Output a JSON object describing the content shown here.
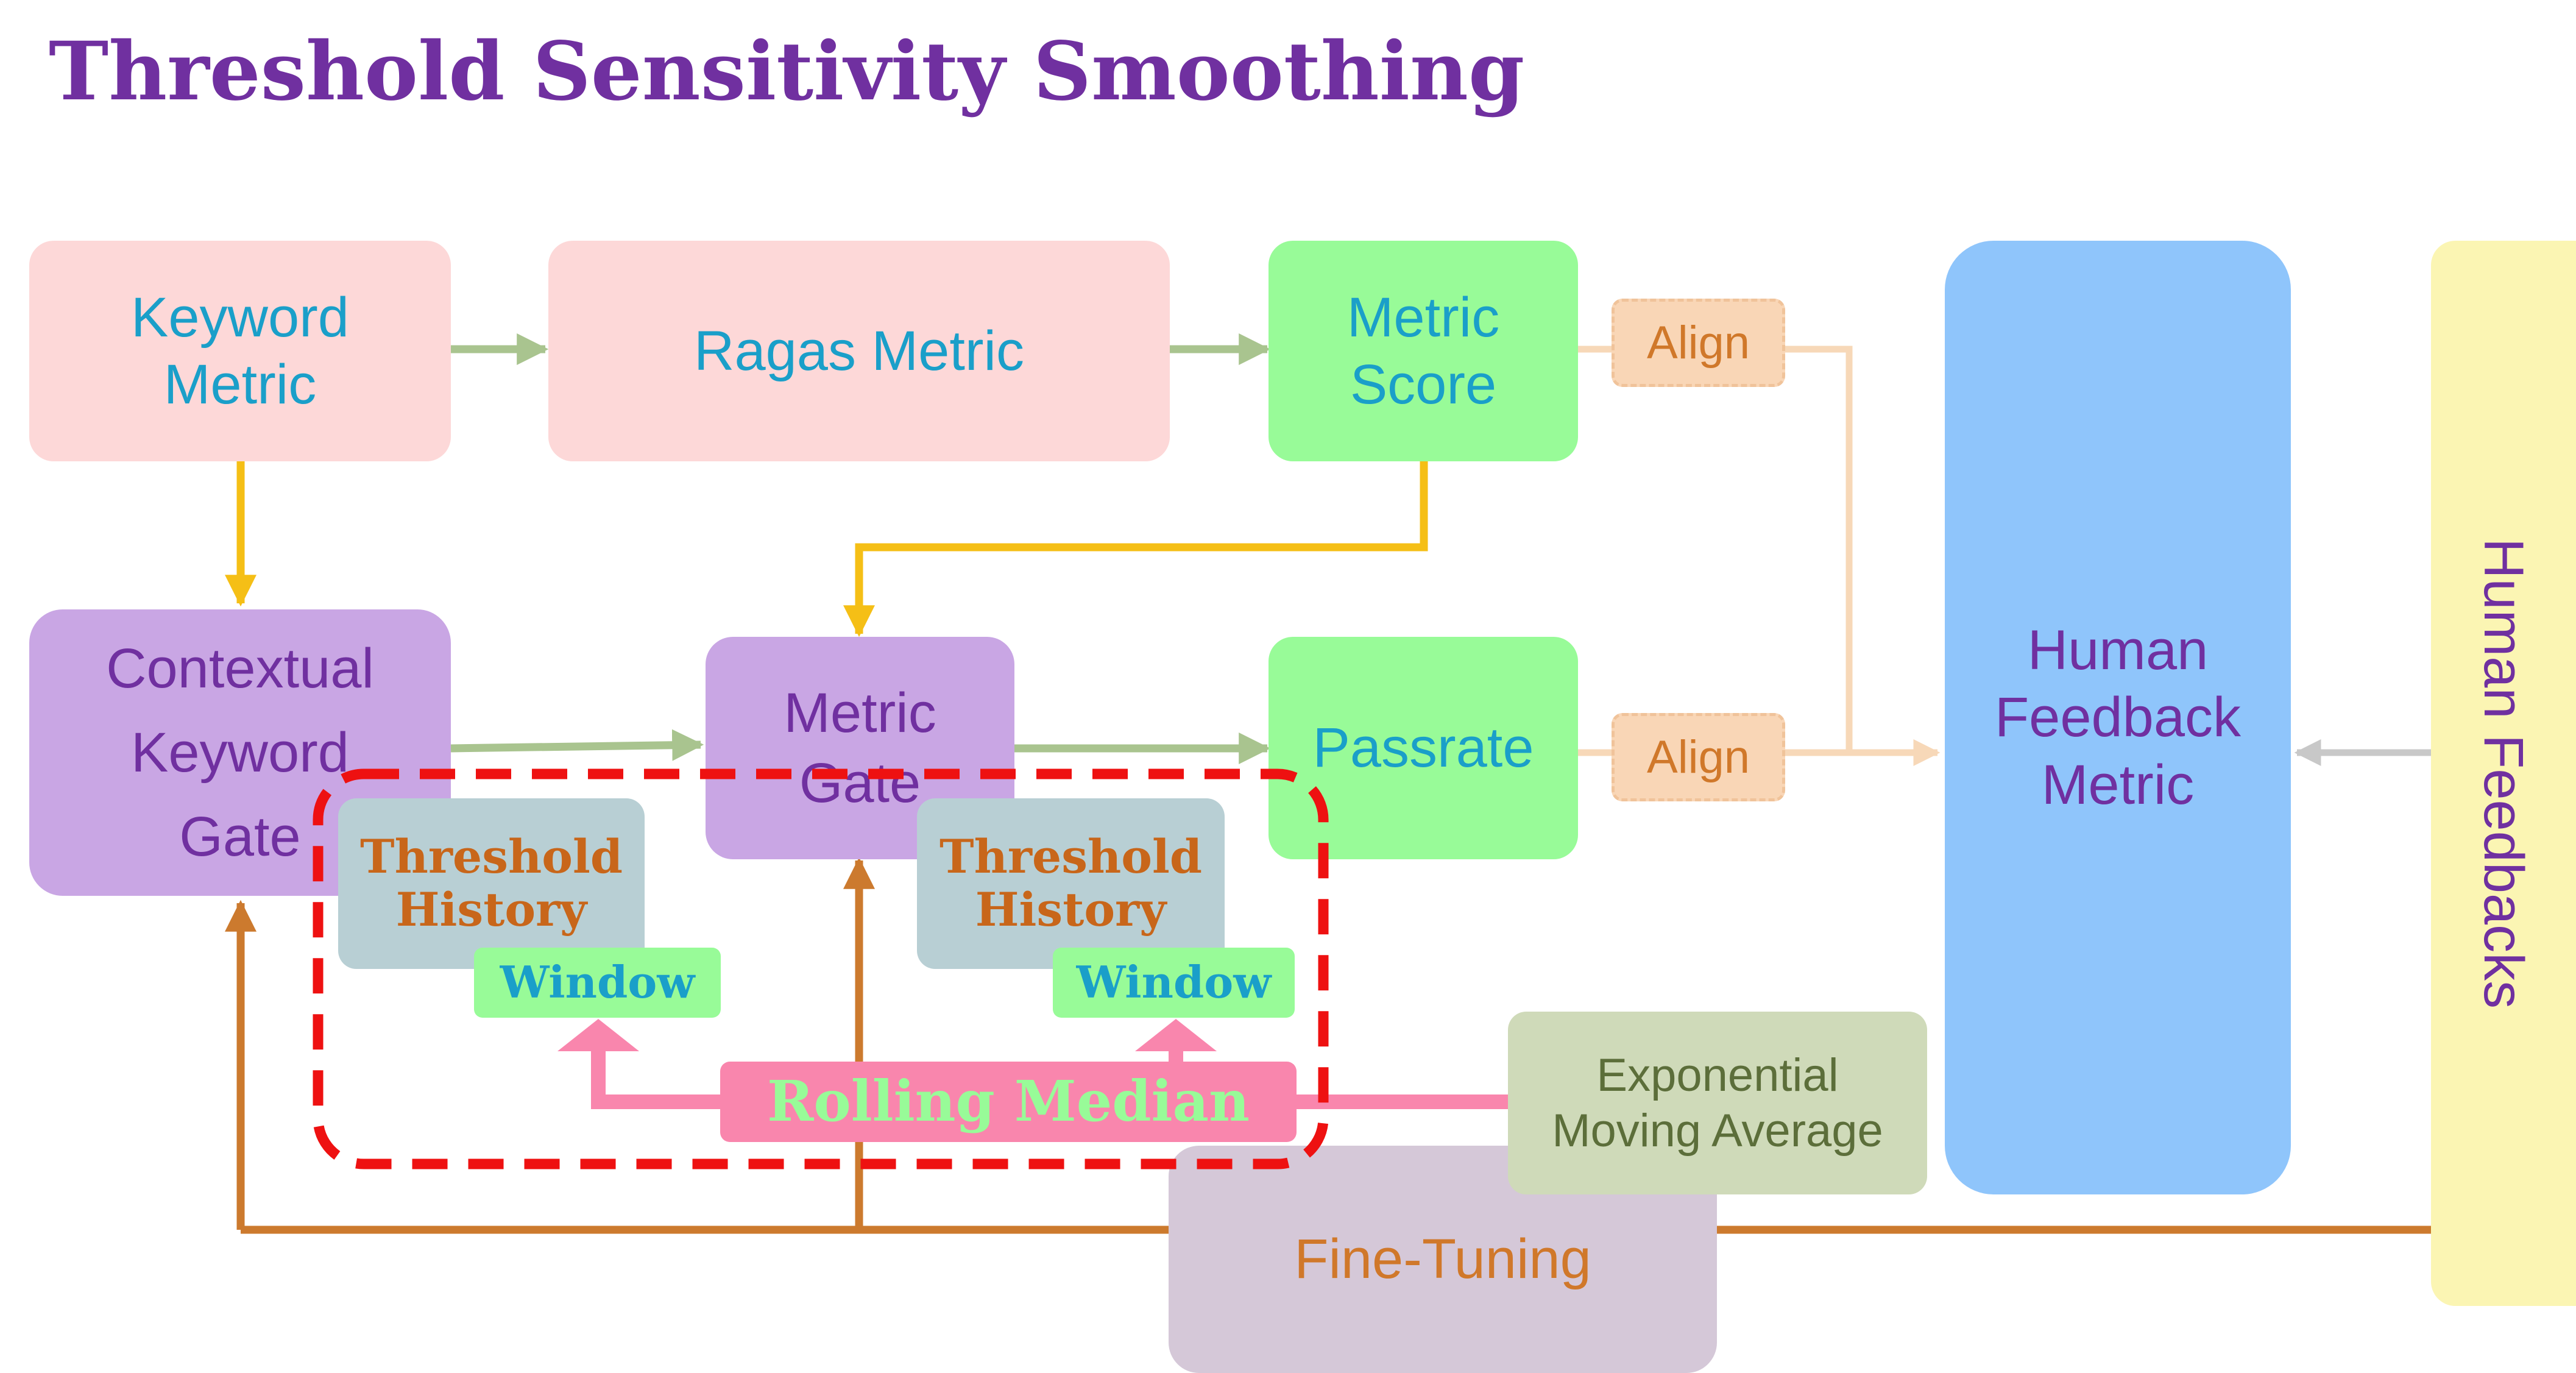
{
  "title": "Threshold Sensitivity Smoothing",
  "colors": {
    "title": "#7030a0",
    "pink_box": "#fdd8d8",
    "green_box": "#98fb98",
    "purple_box": "#c9a6e4",
    "blue_box": "#8fc5fb",
    "yellow_box": "#fbf5b3",
    "mauve_box": "#d5c8d8",
    "sage_box": "#cfdab9",
    "teal_text": "#1a9fc9",
    "purple_text": "#7030a0",
    "orange_text": "#d0782a",
    "green_arrow": "#a9c48f",
    "yellow_arrow": "#f5bf16",
    "orange_arrow": "#cc7a2e",
    "peach_arrow": "#f7d8b8",
    "gray_arrow": "#c8c8c8",
    "pink_arrow": "#f986ad",
    "red_dash": "#ee1111"
  },
  "nodes": {
    "keyword_metric": {
      "label": "Keyword\nMetric"
    },
    "ragas_metric": {
      "label": "Ragas Metric"
    },
    "metric_score": {
      "label": "Metric\nScore"
    },
    "align_top": {
      "label": "Align"
    },
    "human_feedback_metric": {
      "label": "Human\nFeedback\nMetric"
    },
    "human_feedbacks": {
      "label": "Human Feedbacks"
    },
    "contextual_keyword_gate": {
      "label": "Contextual\nKeyword\nGate"
    },
    "metric_gate": {
      "label": "Metric\nGate"
    },
    "passrate": {
      "label": "Passrate"
    },
    "align_bottom": {
      "label": "Align"
    },
    "threshold_history_left": {
      "label": "Threshold\nHistory"
    },
    "window_left": {
      "label": "Window"
    },
    "threshold_history_right": {
      "label": "Threshold\nHistory"
    },
    "window_right": {
      "label": "Window"
    },
    "rolling_median": {
      "label": "Rolling Median"
    },
    "exponential_moving_average": {
      "label": "Exponential\nMoving Average"
    },
    "fine_tuning": {
      "label": "Fine-Tuning"
    }
  }
}
